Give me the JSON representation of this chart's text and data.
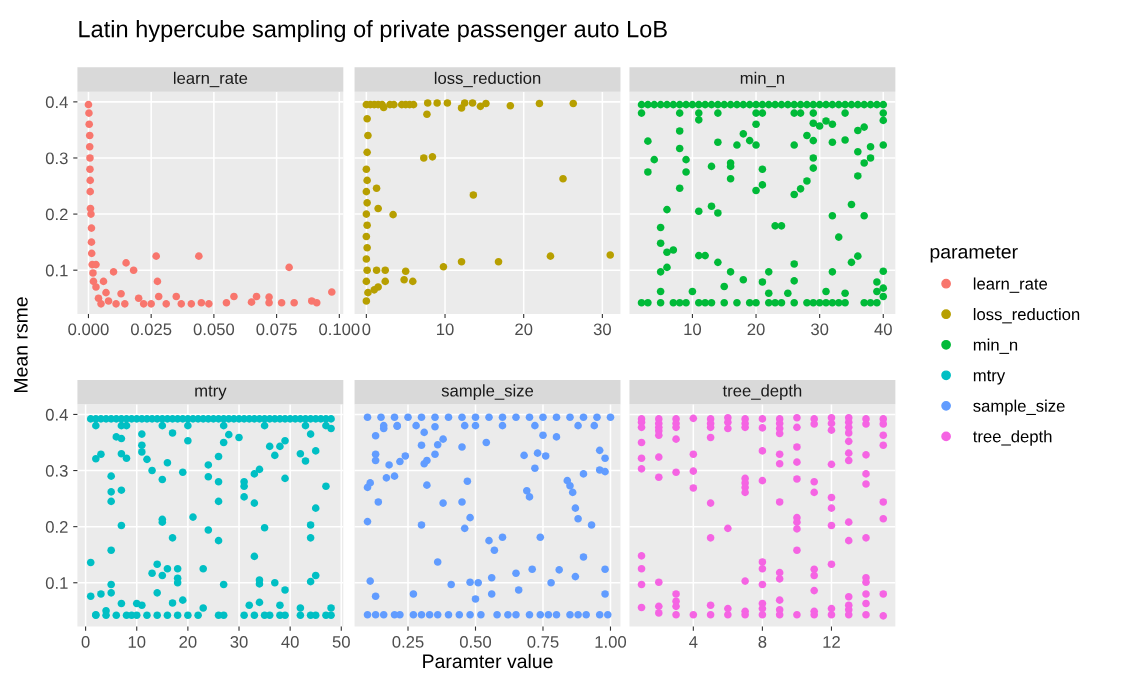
{
  "chart_data": [
    {
      "type": "scatter",
      "title": "learn_rate",
      "annotations": [
        "Latin hypercube sampling of private passenger auto LoB"
      ],
      "ylabel": "Mean rsme",
      "legend": "right",
      "legend_title": "parameter",
      "grid": true,
      "marker": "circle",
      "xlim": [
        -0.0044,
        0.1016
      ],
      "xticks": [
        {
          "value": 0,
          "label": "0.000"
        },
        {
          "value": 0.025,
          "label": "0.025"
        },
        {
          "value": 0.05,
          "label": "0.050"
        },
        {
          "value": 0.075,
          "label": "0.075"
        },
        {
          "value": 0.1,
          "label": "0.100"
        }
      ],
      "ylim": [
        0.022,
        0.418
      ],
      "yticks": [
        0.1,
        0.2,
        0.3,
        0.4
      ],
      "series": [
        {
          "name": "learn_rate",
          "color": "#f8766d",
          "x": [
            0,
            0.0002,
            0.0003,
            0.0005,
            0.0005,
            0.0006,
            0.0006,
            0.0007,
            0.0007,
            0.0008,
            0.001,
            0.0012,
            0.0012,
            0.0013,
            0.0015,
            0.0018,
            0.002,
            0.003,
            0.003,
            0.004,
            0.005,
            0.006,
            0.007,
            0.008,
            0.01,
            0.011,
            0.013,
            0.015,
            0.0145,
            0.018,
            0.02,
            0.022,
            0.025,
            0.027,
            0.0275,
            0.028,
            0.031,
            0.035,
            0.037,
            0.041,
            0.044,
            0.045,
            0.048,
            0.055,
            0.058,
            0.065,
            0.067,
            0.072,
            0.072,
            0.077,
            0.08,
            0.082,
            0.089,
            0.091,
            0.097
          ],
          "values": [
            0.395,
            0.38,
            0.36,
            0.34,
            0.32,
            0.3,
            0.28,
            0.26,
            0.24,
            0.21,
            0.2,
            0.175,
            0.15,
            0.13,
            0.11,
            0.095,
            0.08,
            0.11,
            0.07,
            0.05,
            0.04,
            0.08,
            0.06,
            0.045,
            0.097,
            0.04,
            0.058,
            0.113,
            0.04,
            0.1,
            0.05,
            0.04,
            0.04,
            0.125,
            0.08,
            0.053,
            0.04,
            0.053,
            0.04,
            0.04,
            0.125,
            0.042,
            0.04,
            0.042,
            0.053,
            0.043,
            0.053,
            0.052,
            0.042,
            0.042,
            0.105,
            0.042,
            0.045,
            0.042,
            0.061
          ]
        }
      ]
    },
    {
      "type": "scatter",
      "title": "loss_reduction",
      "legend": "right",
      "grid": true,
      "marker": "circle",
      "tick_labels": "x",
      "xlim": [
        -1.5,
        32.3
      ],
      "xticks": [
        0,
        10,
        20,
        30
      ],
      "ylim": [
        0.022,
        0.418
      ],
      "yticks": [
        0.1,
        0.2,
        0.3,
        0.4
      ],
      "series": [
        {
          "name": "loss_reduction",
          "color": "#b79f00",
          "x": [
            0,
            0.5,
            1,
            1.5,
            2,
            3,
            3.5,
            4.5,
            5,
            5.5,
            6,
            7.8,
            9,
            10.3,
            12.5,
            13.5,
            14.5,
            15.2,
            18.3,
            22,
            26.3,
            2.2,
            7.7,
            12.1,
            0.1,
            0.2,
            0.1,
            0,
            0.1,
            0,
            0.1,
            0,
            0.1,
            0,
            0.1,
            0,
            0.1,
            0,
            0.2,
            0,
            7.3,
            8.4,
            25,
            13.6,
            1.3,
            1.5,
            3.4,
            23.4,
            31,
            12.1,
            16.8,
            9.8,
            1.3,
            2.4,
            5,
            4.8,
            5.9,
            2.4,
            1.5,
            1
          ],
          "values": [
            0.395,
            0.395,
            0.395,
            0.395,
            0.395,
            0.395,
            0.395,
            0.395,
            0.395,
            0.395,
            0.395,
            0.398,
            0.398,
            0.398,
            0.398,
            0.398,
            0.392,
            0.397,
            0.393,
            0.397,
            0.397,
            0.39,
            0.378,
            0.389,
            0.37,
            0.34,
            0.31,
            0.28,
            0.26,
            0.24,
            0.22,
            0.2,
            0.18,
            0.16,
            0.14,
            0.12,
            0.1,
            0.08,
            0.06,
            0.045,
            0.3,
            0.302,
            0.263,
            0.234,
            0.246,
            0.21,
            0.199,
            0.125,
            0.127,
            0.115,
            0.115,
            0.106,
            0.1,
            0.1,
            0.098,
            0.083,
            0.08,
            0.08,
            0.07,
            0.065
          ]
        }
      ]
    },
    {
      "type": "scatter",
      "title": "min_n",
      "legend": "right",
      "grid": true,
      "marker": "circle",
      "tick_labels": "x",
      "xlim": [
        0.1,
        41.9
      ],
      "xticks": [
        10,
        20,
        30,
        40
      ],
      "ylim": [
        0.022,
        0.418
      ],
      "yticks": [
        0.1,
        0.2,
        0.3,
        0.4
      ],
      "series": [
        {
          "name": "min_n",
          "color": "#00ba38",
          "x": [
            3,
            3,
            4,
            5,
            5,
            5,
            5,
            6,
            6,
            6,
            7,
            8,
            8,
            8,
            9,
            9,
            10,
            11,
            11,
            11,
            12,
            13,
            13,
            14,
            14,
            14,
            15,
            16,
            16,
            16,
            16,
            17,
            18,
            18,
            19,
            20,
            20,
            20,
            21,
            21,
            21,
            22,
            22,
            23,
            24,
            25,
            26,
            26,
            26,
            26,
            27,
            28,
            28,
            29,
            29,
            29,
            29,
            30,
            31,
            31,
            32,
            32,
            32,
            32,
            33,
            34,
            34,
            35,
            35,
            36,
            36,
            36,
            36,
            37,
            37,
            37,
            38,
            38,
            39,
            39,
            40,
            40,
            40,
            40,
            40,
            2,
            3,
            5,
            7,
            8,
            9,
            11,
            12,
            13,
            15,
            17,
            19,
            20,
            22,
            23,
            24,
            26,
            28,
            29,
            30,
            31,
            32,
            33,
            34,
            37,
            38,
            39,
            2,
            3,
            4,
            5,
            6,
            7,
            8,
            9,
            10,
            11,
            12,
            13,
            14,
            15,
            16,
            17,
            18,
            19,
            20,
            21,
            22,
            23,
            24,
            25,
            26,
            27,
            28,
            29,
            30,
            31,
            32,
            33,
            34,
            35,
            36,
            37,
            38,
            39,
            40,
            2,
            8,
            11,
            14,
            20,
            21,
            26,
            27,
            29,
            34,
            40
          ],
          "values": [
            0.33,
            0.275,
            0.297,
            0.176,
            0.148,
            0.097,
            0.062,
            0.208,
            0.132,
            0.105,
            0.136,
            0.348,
            0.317,
            0.246,
            0.297,
            0.275,
            0.062,
            0.368,
            0.205,
            0.126,
            0.126,
            0.285,
            0.214,
            0.202,
            0.328,
            0.114,
            0.071,
            0.291,
            0.285,
            0.263,
            0.097,
            0.323,
            0.343,
            0.083,
            0.331,
            0.323,
            0.36,
            0.242,
            0.252,
            0.28,
            0.079,
            0.097,
            0.059,
            0.179,
            0.179,
            0.059,
            0.323,
            0.235,
            0.111,
            0.081,
            0.245,
            0.259,
            0.34,
            0.331,
            0.3,
            0.282,
            0.362,
            0.357,
            0.366,
            0.062,
            0.36,
            0.328,
            0.197,
            0.097,
            0.159,
            0.332,
            0.059,
            0.217,
            0.114,
            0.349,
            0.311,
            0.268,
            0.125,
            0.355,
            0.291,
            0.197,
            0.32,
            0.3,
            0.079,
            0.062,
            0.323,
            0.367,
            0.098,
            0.068,
            0.053,
            0.042,
            0.042,
            0.042,
            0.042,
            0.042,
            0.042,
            0.042,
            0.042,
            0.042,
            0.042,
            0.042,
            0.042,
            0.042,
            0.042,
            0.042,
            0.042,
            0.042,
            0.042,
            0.042,
            0.042,
            0.042,
            0.042,
            0.042,
            0.042,
            0.042,
            0.042,
            0.042,
            0.395,
            0.395,
            0.395,
            0.395,
            0.395,
            0.395,
            0.395,
            0.395,
            0.395,
            0.395,
            0.395,
            0.395,
            0.395,
            0.395,
            0.395,
            0.395,
            0.395,
            0.395,
            0.395,
            0.395,
            0.395,
            0.395,
            0.395,
            0.395,
            0.395,
            0.395,
            0.395,
            0.395,
            0.395,
            0.395,
            0.395,
            0.395,
            0.395,
            0.395,
            0.395,
            0.395,
            0.395,
            0.395,
            0.395,
            0.38,
            0.38,
            0.38,
            0.38,
            0.38,
            0.38,
            0.38,
            0.38,
            0.38,
            0.38,
            0.38
          ]
        }
      ]
    },
    {
      "type": "scatter",
      "title": "mtry",
      "legend": "right",
      "grid": true,
      "marker": "circle",
      "xlim": [
        -1.6,
        50.4
      ],
      "xticks": [
        0,
        10,
        20,
        30,
        40,
        50
      ],
      "ylim": [
        0.022,
        0.418
      ],
      "yticks": [
        0.1,
        0.2,
        0.3,
        0.4
      ],
      "series": [
        {
          "name": "mtry",
          "color": "#00bfc4",
          "x": [
            1,
            1,
            2,
            2,
            3,
            3,
            4,
            5,
            5,
            5,
            5,
            5,
            5,
            6,
            7,
            7,
            7,
            7,
            7,
            8,
            10,
            11,
            11,
            11,
            11,
            12,
            13,
            13,
            14,
            14,
            15,
            15,
            15,
            15,
            16,
            16,
            17,
            17,
            17,
            18,
            18,
            18,
            19,
            19,
            20,
            21,
            23,
            23,
            24,
            24,
            24,
            26,
            26,
            26,
            26,
            27,
            27,
            28,
            30,
            31,
            31,
            31,
            32,
            33,
            33,
            33,
            34,
            34,
            34,
            34,
            35,
            36,
            37,
            37,
            38,
            38,
            39,
            39,
            39,
            42,
            42,
            43,
            44,
            44,
            44,
            44,
            45,
            45,
            45,
            47,
            48,
            48,
            2,
            4,
            6,
            8,
            9,
            10,
            12,
            14,
            16,
            18,
            20,
            22,
            26,
            27,
            31,
            33,
            35,
            36,
            38,
            39,
            42,
            44,
            45,
            47,
            48,
            1,
            2,
            3,
            4,
            5,
            6,
            7,
            8,
            9,
            10,
            11,
            12,
            13,
            14,
            15,
            16,
            17,
            18,
            19,
            20,
            21,
            22,
            23,
            24,
            25,
            26,
            27,
            28,
            29,
            30,
            31,
            32,
            33,
            34,
            35,
            36,
            37,
            38,
            39,
            40,
            41,
            42,
            43,
            44,
            45,
            46,
            47,
            48,
            2,
            7,
            8,
            15,
            20,
            27,
            35,
            43,
            47
          ],
          "values": [
            0.136,
            0.076,
            0.043,
            0.321,
            0.329,
            0.08,
            0.05,
            0.29,
            0.262,
            0.245,
            0.158,
            0.097,
            0.082,
            0.36,
            0.357,
            0.33,
            0.265,
            0.202,
            0.063,
            0.322,
            0.063,
            0.365,
            0.345,
            0.333,
            0.06,
            0.32,
            0.3,
            0.117,
            0.133,
            0.082,
            0.284,
            0.213,
            0.208,
            0.113,
            0.314,
            0.125,
            0.367,
            0.18,
            0.064,
            0.125,
            0.108,
            0.1,
            0.297,
            0.069,
            0.353,
            0.217,
            0.125,
            0.055,
            0.31,
            0.289,
            0.194,
            0.325,
            0.28,
            0.245,
            0.175,
            0.35,
            0.097,
            0.364,
            0.359,
            0.28,
            0.272,
            0.253,
            0.06,
            0.294,
            0.242,
            0.147,
            0.302,
            0.105,
            0.098,
            0.065,
            0.198,
            0.343,
            0.327,
            0.1,
            0.343,
            0.06,
            0.353,
            0.286,
            0.087,
            0.33,
            0.055,
            0.317,
            0.365,
            0.203,
            0.18,
            0.102,
            0.335,
            0.233,
            0.113,
            0.272,
            0.055,
            0.375,
            0.042,
            0.042,
            0.042,
            0.042,
            0.042,
            0.042,
            0.042,
            0.042,
            0.042,
            0.042,
            0.042,
            0.042,
            0.042,
            0.042,
            0.042,
            0.042,
            0.042,
            0.042,
            0.042,
            0.042,
            0.042,
            0.042,
            0.042,
            0.042,
            0.042,
            0.392,
            0.392,
            0.392,
            0.392,
            0.392,
            0.392,
            0.392,
            0.392,
            0.392,
            0.392,
            0.392,
            0.392,
            0.392,
            0.392,
            0.392,
            0.392,
            0.392,
            0.392,
            0.392,
            0.392,
            0.392,
            0.392,
            0.392,
            0.392,
            0.392,
            0.392,
            0.392,
            0.392,
            0.392,
            0.392,
            0.392,
            0.392,
            0.392,
            0.392,
            0.392,
            0.392,
            0.392,
            0.392,
            0.392,
            0.392,
            0.392,
            0.392,
            0.392,
            0.392,
            0.392,
            0.392,
            0.392,
            0.392,
            0.38,
            0.38,
            0.38,
            0.38,
            0.38,
            0.38,
            0.38,
            0.38,
            0.38
          ]
        }
      ]
    },
    {
      "type": "scatter",
      "title": "sample_size",
      "xlabel": "Paramter value",
      "legend": "right",
      "grid": true,
      "marker": "circle",
      "tick_labels": "x",
      "xlim": [
        0.052,
        1.037
      ],
      "xticks": [
        {
          "value": 0.25,
          "label": "0.25"
        },
        {
          "value": 0.5,
          "label": "0.50"
        },
        {
          "value": 0.75,
          "label": "0.75"
        },
        {
          "value": 1,
          "label": "1.00"
        }
      ],
      "ylim": [
        0.022,
        0.418
      ],
      "yticks": [
        0.1,
        0.2,
        0.3,
        0.4
      ],
      "series": [
        {
          "name": "sample_size",
          "color": "#619cff",
          "x": [
            0.13,
            0.13,
            0.13,
            0.1,
            0.11,
            0.14,
            0.1,
            0.11,
            0.13,
            0.16,
            0.18,
            0.17,
            0.2,
            0.21,
            0.22,
            0.24,
            0.27,
            0.3,
            0.3,
            0.31,
            0.31,
            0.32,
            0.32,
            0.35,
            0.35,
            0.36,
            0.36,
            0.38,
            0.38,
            0.41,
            0.45,
            0.45,
            0.47,
            0.46,
            0.48,
            0.48,
            0.51,
            0.5,
            0.54,
            0.55,
            0.57,
            0.56,
            0.56,
            0.6,
            0.65,
            0.66,
            0.68,
            0.69,
            0.7,
            0.71,
            0.72,
            0.73,
            0.74,
            0.76,
            0.78,
            0.75,
            0.8,
            0.81,
            0.84,
            0.85,
            0.86,
            0.87,
            0.87,
            0.88,
            0.9,
            0.9,
            0.93,
            0.96,
            0.98,
            0.96,
            0.98,
            0.98,
            0.98,
            0.1,
            0.13,
            0.16,
            0.2,
            0.22,
            0.27,
            0.3,
            0.33,
            0.36,
            0.4,
            0.44,
            0.48,
            0.52,
            0.58,
            0.62,
            0.65,
            0.7,
            0.74,
            0.77,
            0.8,
            0.85,
            0.88,
            0.91,
            0.96,
            0.99,
            0.1,
            0.15,
            0.2,
            0.25,
            0.3,
            0.35,
            0.4,
            0.45,
            0.5,
            0.55,
            0.6,
            0.65,
            0.7,
            0.75,
            0.8,
            0.85,
            0.9,
            0.95,
            1,
            0.16,
            0.21,
            0.28,
            0.46,
            0.5,
            0.6,
            0.72,
            0.88,
            0.94
          ],
          "values": [
            0.362,
            0.329,
            0.318,
            0.27,
            0.278,
            0.244,
            0.209,
            0.103,
            0.076,
            0.375,
            0.31,
            0.287,
            0.29,
            0.379,
            0.316,
            0.326,
            0.08,
            0.345,
            0.203,
            0.368,
            0.312,
            0.318,
            0.274,
            0.378,
            0.329,
            0.346,
            0.137,
            0.356,
            0.242,
            0.097,
            0.244,
            0.342,
            0.281,
            0.197,
            0.216,
            0.101,
            0.1,
            0.071,
            0.35,
            0.175,
            0.158,
            0.109,
            0.08,
            0.181,
            0.117,
            0.087,
            0.327,
            0.264,
            0.253,
            0.124,
            0.304,
            0.331,
            0.181,
            0.326,
            0.1,
            0.363,
            0.36,
            0.123,
            0.282,
            0.273,
            0.261,
            0.233,
            0.111,
            0.214,
            0.146,
            0.294,
            0.203,
            0.336,
            0.322,
            0.301,
            0.298,
            0.124,
            0.08,
            0.043,
            0.043,
            0.043,
            0.043,
            0.043,
            0.043,
            0.043,
            0.043,
            0.043,
            0.043,
            0.043,
            0.043,
            0.043,
            0.043,
            0.043,
            0.043,
            0.043,
            0.043,
            0.043,
            0.043,
            0.043,
            0.043,
            0.043,
            0.043,
            0.043,
            0.395,
            0.395,
            0.395,
            0.395,
            0.395,
            0.395,
            0.395,
            0.395,
            0.395,
            0.395,
            0.395,
            0.395,
            0.395,
            0.395,
            0.395,
            0.395,
            0.395,
            0.395,
            0.395,
            0.38,
            0.38,
            0.38,
            0.38,
            0.38,
            0.38,
            0.38,
            0.38,
            0.38
          ]
        }
      ]
    },
    {
      "type": "scatter",
      "title": "tree_depth",
      "legend": "right",
      "grid": true,
      "marker": "circle",
      "tick_labels": "x",
      "xlim": [
        0.3,
        15.7
      ],
      "xticks": [
        4,
        8,
        12
      ],
      "ylim": [
        0.022,
        0.418
      ],
      "yticks": [
        0.1,
        0.2,
        0.3,
        0.4
      ],
      "series": [
        {
          "name": "tree_depth",
          "color": "#f564e3",
          "x": [
            1,
            1,
            1,
            1,
            1,
            1,
            1,
            1,
            1,
            1,
            2,
            2,
            2,
            2,
            2,
            2,
            2,
            2,
            2,
            2,
            3,
            3,
            3,
            3,
            3,
            3,
            3,
            3,
            3,
            4,
            4,
            4,
            4,
            4,
            5,
            5,
            5,
            5,
            5,
            5,
            5,
            5,
            6,
            6,
            6,
            6,
            6,
            6,
            7,
            7,
            7,
            7,
            7,
            7,
            7,
            7,
            7,
            7,
            8,
            8,
            8,
            8,
            8,
            8,
            8,
            8,
            8,
            8,
            9,
            9,
            9,
            9,
            9,
            9,
            9,
            9,
            9,
            9,
            9,
            9,
            10,
            10,
            10,
            10,
            10,
            10,
            10,
            10,
            10,
            10,
            11,
            11,
            11,
            11,
            11,
            11,
            11,
            11,
            11,
            12,
            12,
            12,
            12,
            12,
            12,
            12,
            12,
            12,
            12,
            13,
            13,
            13,
            13,
            13,
            13,
            13,
            13,
            13,
            13,
            13,
            13,
            13,
            14,
            14,
            14,
            14,
            14,
            14,
            14,
            14,
            14,
            14,
            14,
            15,
            15,
            15,
            15,
            15,
            15,
            15,
            15
          ],
          "values": [
            0.392,
            0.386,
            0.377,
            0.35,
            0.322,
            0.303,
            0.148,
            0.125,
            0.097,
            0.056,
            0.392,
            0.384,
            0.377,
            0.371,
            0.363,
            0.324,
            0.288,
            0.101,
            0.058,
            0.046,
            0.392,
            0.384,
            0.377,
            0.356,
            0.297,
            0.08,
            0.067,
            0.058,
            0.043,
            0.393,
            0.329,
            0.299,
            0.269,
            0.043,
            0.392,
            0.384,
            0.377,
            0.359,
            0.242,
            0.18,
            0.06,
            0.043,
            0.394,
            0.386,
            0.375,
            0.197,
            0.054,
            0.043,
            0.392,
            0.384,
            0.377,
            0.286,
            0.278,
            0.27,
            0.261,
            0.103,
            0.049,
            0.043,
            0.392,
            0.376,
            0.335,
            0.282,
            0.137,
            0.125,
            0.097,
            0.063,
            0.054,
            0.043,
            0.392,
            0.384,
            0.375,
            0.366,
            0.329,
            0.312,
            0.244,
            0.118,
            0.107,
            0.069,
            0.052,
            0.043,
            0.394,
            0.377,
            0.342,
            0.315,
            0.285,
            0.216,
            0.208,
            0.196,
            0.158,
            0.043,
            0.392,
            0.383,
            0.28,
            0.261,
            0.124,
            0.113,
            0.086,
            0.049,
            0.043,
            0.394,
            0.384,
            0.372,
            0.311,
            0.252,
            0.233,
            0.202,
            0.133,
            0.054,
            0.043,
            0.394,
            0.386,
            0.377,
            0.367,
            0.352,
            0.331,
            0.318,
            0.208,
            0.175,
            0.075,
            0.06,
            0.052,
            0.043,
            0.392,
            0.383,
            0.328,
            0.294,
            0.276,
            0.18,
            0.109,
            0.101,
            0.08,
            0.063,
            0.043,
            0.392,
            0.383,
            0.363,
            0.345,
            0.244,
            0.214,
            0.08,
            0.041
          ]
        }
      ]
    }
  ]
}
